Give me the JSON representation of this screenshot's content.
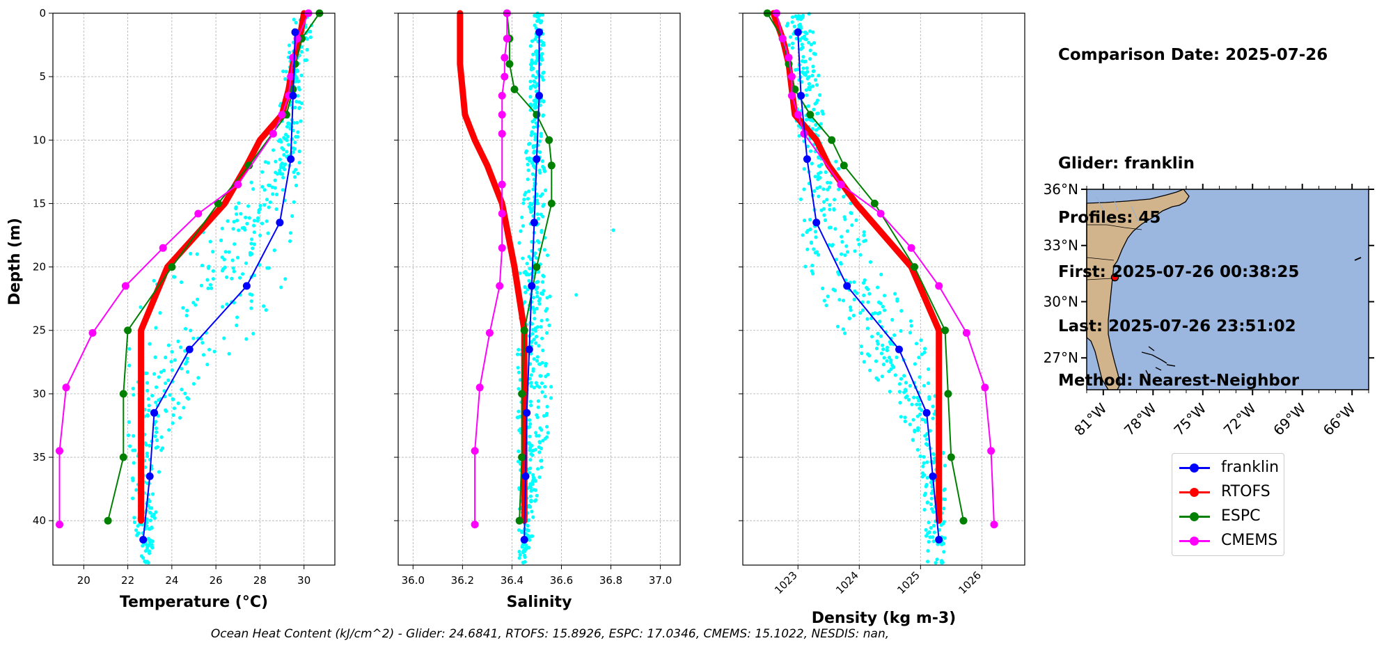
{
  "info": {
    "comparison_date": "Comparison Date: 2025-07-26",
    "glider": "Glider: franklin",
    "profiles": "Profiles: 45",
    "first": "First: 2025-07-26 00:38:25",
    "last": "Last: 2025-07-26 23:51:02",
    "method": "Method: Nearest-Neighbor"
  },
  "footer": "Ocean Heat Content (kJ/cm^2) - Glider: 24.6841,  RTOFS: 15.8926,  ESPC: 17.0346,  CMEMS: 15.1022,  NESDIS: nan,",
  "colors": {
    "franklin": "#0000ff",
    "RTOFS": "#ff0000",
    "ESPC": "#008000",
    "CMEMS": "#ff00ff",
    "raw": "#00ffff",
    "land": "#d2b48c",
    "ocean": "#9bb7e0"
  },
  "legend": [
    {
      "name": "franklin",
      "color": "#0000ff"
    },
    {
      "name": "RTOFS",
      "color": "#ff0000"
    },
    {
      "name": "ESPC",
      "color": "#008000"
    },
    {
      "name": "CMEMS",
      "color": "#ff00ff"
    }
  ],
  "chart_data": [
    {
      "type": "line",
      "xlabel": "Temperature (°C)",
      "ylabel": "Depth (m)",
      "xlim": [
        18.6,
        31.4
      ],
      "ylim": [
        43.5,
        0
      ],
      "xticks": [
        20,
        22,
        24,
        26,
        28,
        30
      ],
      "yticks": [
        0,
        5,
        10,
        15,
        20,
        25,
        30,
        35,
        40
      ],
      "grid": true,
      "raw_band": [
        [
          0,
          29.6,
          30.5
        ],
        [
          5,
          29.0,
          30.0
        ],
        [
          10,
          28.8,
          29.8
        ],
        [
          15,
          27.0,
          29.8
        ],
        [
          20,
          23.5,
          29.5
        ],
        [
          25,
          22.0,
          28.0
        ],
        [
          30,
          22.0,
          25.0
        ],
        [
          35,
          22.0,
          23.5
        ],
        [
          43,
          22.4,
          23.1
        ]
      ],
      "series": [
        {
          "name": "franklin",
          "depth": [
            1.5,
            6.5,
            11.5,
            16.5,
            21.5,
            26.5,
            31.5,
            36.5,
            41.5
          ],
          "values": [
            29.6,
            29.5,
            29.4,
            28.9,
            27.4,
            24.8,
            23.2,
            23.0,
            22.7
          ]
        },
        {
          "name": "RTOFS",
          "depth": [
            0,
            2,
            4,
            6,
            8,
            10,
            12,
            15,
            20,
            25,
            30,
            35,
            40
          ],
          "values": [
            30.0,
            29.8,
            29.5,
            29.3,
            29.0,
            28.0,
            27.4,
            26.4,
            23.8,
            22.6,
            22.6,
            22.6,
            22.6
          ]
        },
        {
          "name": "ESPC",
          "depth": [
            0,
            2,
            4,
            6,
            8,
            12,
            15,
            20,
            25,
            30,
            35,
            40
          ],
          "values": [
            30.7,
            29.9,
            29.6,
            29.5,
            29.2,
            27.5,
            26.1,
            24.0,
            22.0,
            21.8,
            21.8,
            21.1
          ]
        },
        {
          "name": "CMEMS",
          "depth": [
            0,
            2,
            3.5,
            5,
            6.5,
            8,
            9.5,
            13.5,
            15.8,
            18.5,
            21.5,
            25.2,
            29.5,
            34.5,
            40.3
          ],
          "values": [
            30.2,
            29.7,
            29.5,
            29.4,
            29.3,
            29.0,
            28.6,
            27.0,
            25.2,
            23.6,
            21.9,
            20.4,
            19.2,
            18.9,
            18.9
          ]
        }
      ]
    },
    {
      "type": "line",
      "xlabel": "Salinity",
      "ylabel": "",
      "xlim": [
        35.94,
        37.08
      ],
      "ylim": [
        43.5,
        0
      ],
      "xticks": [
        "36.0",
        "36.2",
        "36.4",
        "36.6",
        "36.8",
        "37.0"
      ],
      "yticks": [
        0,
        5,
        10,
        15,
        20,
        25,
        30,
        35,
        40
      ],
      "grid": true,
      "raw_band": [
        [
          0,
          36.48,
          36.53
        ],
        [
          10,
          36.46,
          36.53
        ],
        [
          20,
          36.42,
          36.55
        ],
        [
          30,
          36.42,
          36.57
        ],
        [
          43,
          36.43,
          36.47
        ]
      ],
      "series": [
        {
          "name": "franklin",
          "depth": [
            1.5,
            6.5,
            11.5,
            16.5,
            21.5,
            26.5,
            31.5,
            36.5,
            41.5
          ],
          "values": [
            36.51,
            36.51,
            36.5,
            36.49,
            36.48,
            36.47,
            36.46,
            36.455,
            36.45
          ]
        },
        {
          "name": "RTOFS",
          "depth": [
            0,
            2,
            4,
            6,
            8,
            10,
            12,
            15,
            20,
            25,
            30,
            35,
            40
          ],
          "values": [
            36.19,
            36.19,
            36.19,
            36.2,
            36.21,
            36.25,
            36.3,
            36.36,
            36.41,
            36.45,
            36.45,
            36.45,
            36.45
          ]
        },
        {
          "name": "ESPC",
          "depth": [
            0,
            2,
            4,
            6,
            8,
            10,
            12,
            15,
            20,
            25,
            30,
            35,
            40
          ],
          "values": [
            36.38,
            36.39,
            36.39,
            36.41,
            36.5,
            36.55,
            36.56,
            36.56,
            36.5,
            36.45,
            36.44,
            36.44,
            36.43
          ]
        },
        {
          "name": "CMEMS",
          "depth": [
            0,
            2,
            3.5,
            5,
            6.5,
            8,
            9.5,
            13.5,
            15.8,
            18.5,
            21.5,
            25.2,
            29.5,
            34.5,
            40.3
          ],
          "values": [
            36.38,
            36.38,
            36.37,
            36.37,
            36.36,
            36.36,
            36.36,
            36.36,
            36.36,
            36.36,
            36.35,
            36.31,
            36.27,
            36.25,
            36.25
          ]
        }
      ]
    },
    {
      "type": "line",
      "xlabel": "Density (kg m-3)",
      "ylabel": "",
      "xlim": [
        1022.1,
        1026.7
      ],
      "ylim": [
        43.5,
        0
      ],
      "xticks": [
        "1023",
        "1024",
        "1025",
        "1026"
      ],
      "yticks": [
        0,
        5,
        10,
        15,
        20,
        25,
        30,
        35,
        40
      ],
      "grid": true,
      "raw_band": [
        [
          0,
          1022.8,
          1023.2
        ],
        [
          10,
          1023.0,
          1023.5
        ],
        [
          20,
          1023.1,
          1024.3
        ],
        [
          25,
          1023.6,
          1025.0
        ],
        [
          30,
          1024.5,
          1025.3
        ],
        [
          35,
          1025.0,
          1025.4
        ],
        [
          43,
          1025.1,
          1025.4
        ]
      ],
      "series": [
        {
          "name": "franklin",
          "depth": [
            1.5,
            6.5,
            11.5,
            16.5,
            21.5,
            26.5,
            31.5,
            36.5,
            41.5
          ],
          "values": [
            1023.0,
            1023.05,
            1023.15,
            1023.3,
            1023.8,
            1024.65,
            1025.1,
            1025.2,
            1025.3
          ]
        },
        {
          "name": "RTOFS",
          "depth": [
            0,
            2,
            4,
            6,
            8,
            10,
            12,
            15,
            20,
            25,
            30,
            35,
            40
          ],
          "values": [
            1022.6,
            1022.75,
            1022.85,
            1022.9,
            1022.95,
            1023.3,
            1023.5,
            1023.95,
            1024.85,
            1025.3,
            1025.3,
            1025.3,
            1025.3
          ]
        },
        {
          "name": "ESPC",
          "depth": [
            0,
            2,
            4,
            6,
            8,
            10,
            12,
            15,
            20,
            25,
            30,
            35,
            40
          ],
          "values": [
            1022.5,
            1022.75,
            1022.85,
            1022.95,
            1023.2,
            1023.55,
            1023.75,
            1024.25,
            1024.9,
            1025.4,
            1025.45,
            1025.5,
            1025.7
          ]
        },
        {
          "name": "CMEMS",
          "depth": [
            0,
            2,
            3.5,
            5,
            6.5,
            8,
            9.5,
            13.5,
            15.8,
            18.5,
            21.5,
            25.2,
            29.5,
            34.5,
            40.3
          ],
          "values": [
            1022.65,
            1022.75,
            1022.85,
            1022.9,
            1022.9,
            1023.0,
            1023.1,
            1023.7,
            1024.35,
            1024.85,
            1025.3,
            1025.75,
            1026.05,
            1026.15,
            1026.2
          ]
        }
      ]
    },
    {
      "type": "map",
      "lon_ticks": [
        "81°W",
        "78°W",
        "75°W",
        "72°W",
        "69°W",
        "66°W"
      ],
      "lat_ticks": [
        "36°N",
        "33°N",
        "30°N",
        "27°N"
      ],
      "lon_range": [
        -82.0,
        -65.0
      ],
      "lat_range": [
        25.3,
        36.0
      ],
      "marker": {
        "lon": -80.3,
        "lat": 31.3
      }
    }
  ]
}
